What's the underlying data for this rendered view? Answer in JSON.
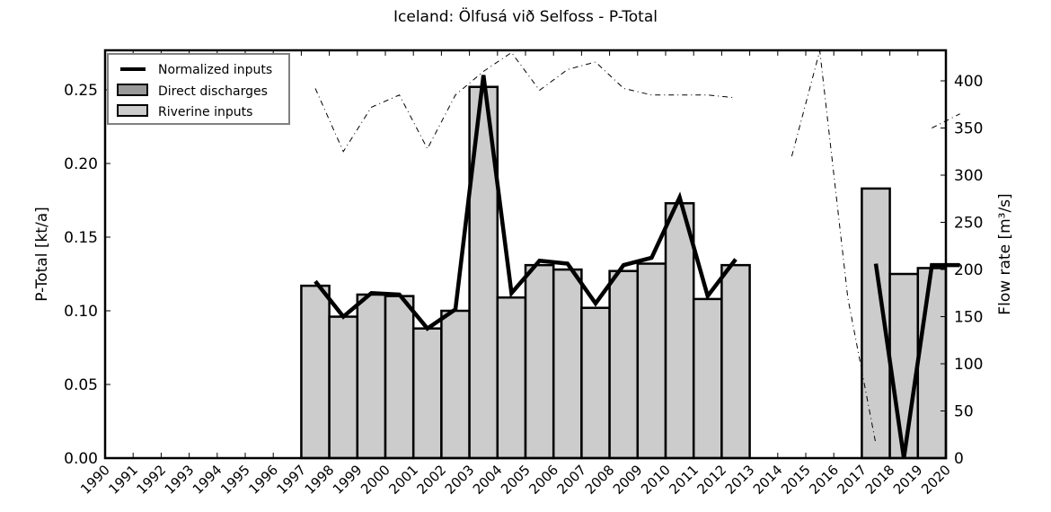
{
  "chart_data": {
    "type": "bar",
    "title": "Iceland: Ölfusá við Selfoss - P-Total",
    "xlabel": "",
    "ylabel": "P-Total [kt/a]",
    "y2label": "Flow rate [m³/s]",
    "ylim": [
      0,
      0.275
    ],
    "y2lim": [
      0,
      430
    ],
    "yticks": [
      "0.00",
      "0.05",
      "0.10",
      "0.15",
      "0.20",
      "0.25"
    ],
    "y2ticks": [
      "0",
      "50",
      "100",
      "150",
      "200",
      "250",
      "300",
      "350",
      "400"
    ],
    "categories": [
      "1990",
      "1991",
      "1992",
      "1993",
      "1994",
      "1995",
      "1996",
      "1997",
      "1998",
      "1999",
      "2000",
      "2001",
      "2002",
      "2003",
      "2004",
      "2005",
      "2006",
      "2007",
      "2008",
      "2009",
      "2010",
      "2011",
      "2012",
      "2013",
      "2014",
      "2015",
      "2016",
      "2017",
      "2018",
      "2019",
      "2020"
    ],
    "legend": {
      "position": "upper left",
      "entries": [
        {
          "label": "Normalized inputs",
          "style": "line",
          "color": "#000000"
        },
        {
          "label": "Direct discharges",
          "style": "bar",
          "color": "#999999"
        },
        {
          "label": "Riverine inputs",
          "style": "bar",
          "color": "#cccccc"
        }
      ]
    },
    "series": [
      {
        "name": "Riverine inputs",
        "type": "bar",
        "color": "#cccccc",
        "values": [
          null,
          null,
          null,
          null,
          null,
          null,
          null,
          0.117,
          0.096,
          0.111,
          0.11,
          0.088,
          0.1,
          0.252,
          0.109,
          0.131,
          0.128,
          0.102,
          0.127,
          0.132,
          0.173,
          0.108,
          0.131,
          null,
          null,
          null,
          null,
          0.183,
          0.125,
          0.129,
          null
        ]
      },
      {
        "name": "Direct discharges",
        "type": "bar",
        "color": "#999999",
        "values": [
          null,
          null,
          null,
          null,
          null,
          null,
          null,
          0,
          0,
          0,
          0,
          0,
          0,
          0,
          0,
          0,
          0,
          0,
          0,
          0,
          0,
          0,
          0,
          null,
          null,
          null,
          null,
          0,
          0,
          0,
          null
        ]
      },
      {
        "name": "Normalized inputs",
        "type": "line",
        "color": "#000000",
        "values": [
          null,
          null,
          null,
          null,
          null,
          null,
          null,
          0.12,
          0.096,
          0.112,
          0.111,
          0.088,
          0.101,
          0.26,
          0.112,
          0.134,
          0.132,
          0.105,
          0.131,
          0.136,
          0.177,
          0.11,
          0.135,
          null,
          null,
          null,
          null,
          0.132,
          0.0,
          0.131,
          0.131
        ]
      },
      {
        "name": "Flow rate",
        "type": "line",
        "axis": "right",
        "style": "dashdot",
        "color": "#000000",
        "values": [
          null,
          null,
          null,
          null,
          null,
          null,
          null,
          392,
          325,
          372,
          385,
          328,
          385,
          410,
          430,
          390,
          412,
          420,
          392,
          385,
          385,
          385,
          382,
          null,
          320,
          432,
          170,
          15,
          null,
          350,
          365
        ]
      }
    ]
  },
  "title": "Iceland: Ölfusá við Selfoss - P-Total",
  "axes": {
    "left_label": "P-Total [kt/a]",
    "right_label": "Flow rate [m³/s]"
  }
}
